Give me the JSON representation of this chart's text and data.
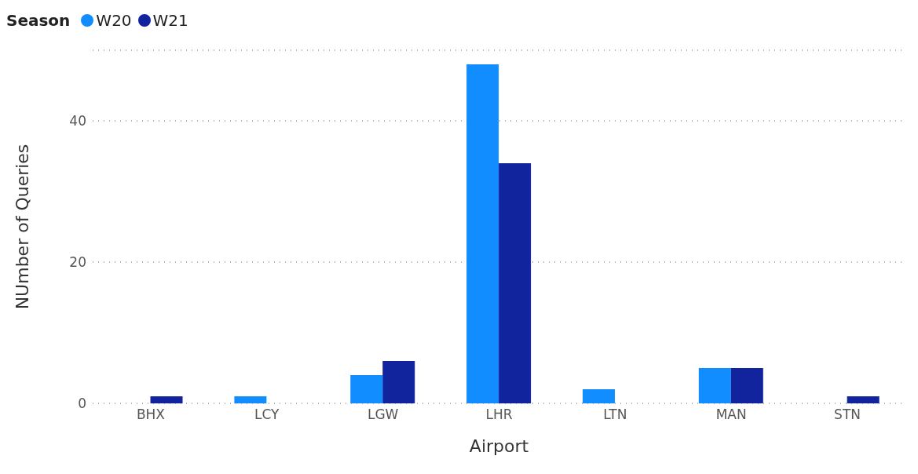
{
  "chart_data": {
    "type": "bar",
    "xlabel": "Airport",
    "ylabel": "NUmber of Queries",
    "legend_title": "Season",
    "legend": "top left",
    "grid": "y",
    "line_style": "dotted",
    "categories": [
      "BHX",
      "LCY",
      "LGW",
      "LHR",
      "LTN",
      "MAN",
      "STN"
    ],
    "series": [
      {
        "name": "W20",
        "color": "#118dff",
        "values": [
          null,
          1,
          4,
          48,
          2,
          5,
          null
        ]
      },
      {
        "name": "W21",
        "color": "#12239e",
        "values": [
          1,
          null,
          6,
          34,
          null,
          5,
          1
        ]
      }
    ],
    "ylim": [
      0,
      50
    ],
    "yticks": [
      0,
      20,
      40
    ]
  }
}
